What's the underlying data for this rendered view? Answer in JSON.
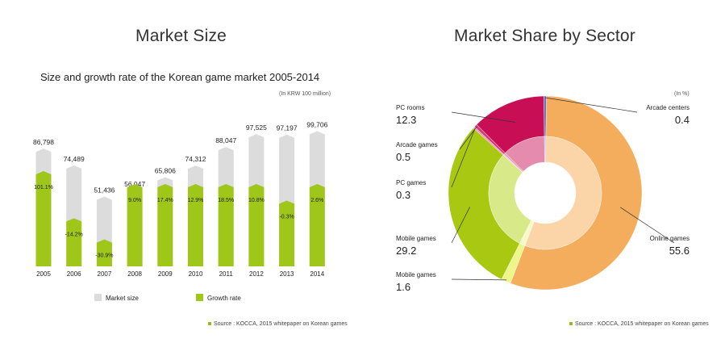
{
  "left": {
    "title": "Market Size",
    "subtitle": "Size and growth rate of the Korean game market 2005-2014",
    "unit": "(In KRW 100 million)",
    "source": "Source : KOCCA, 2015 whitepaper on Korean games"
  },
  "right": {
    "title": "Market Share by Sector",
    "unit": "(In %)",
    "source": "Source : KOCCA, 2015 whitepaper on Korean games"
  },
  "colors": {
    "market_size": "#dcdcdc",
    "growth_rate": "#9ec71a",
    "online": "#f4ad5c",
    "pc_rooms": "#c80f55",
    "mobile": "#a8c812",
    "mobile_small": "#eef58a",
    "arcade": "#6a6fc1"
  },
  "chart_data": [
    {
      "type": "bar",
      "title": "Size and growth rate of the Korean game market 2005-2014",
      "unit": "(In KRW 100 million)",
      "categories": [
        "2005",
        "2006",
        "2007",
        "2008",
        "2009",
        "2010",
        "2011",
        "2012",
        "2013",
        "2014"
      ],
      "series": [
        {
          "name": "Market size",
          "values": [
            86798,
            74489,
            51436,
            56047,
            65806,
            74312,
            88047,
            97525,
            97197,
            99706
          ],
          "labels": [
            "86,798",
            "74,489",
            "51,436",
            "56,047",
            "65,806",
            "74,312",
            "88,047",
            "97,525",
            "97,197",
            "99,706"
          ]
        },
        {
          "name": "Growth rate",
          "values": [
            101.1,
            -14.2,
            -30.9,
            9.0,
            17.4,
            12.9,
            18.5,
            10.8,
            -0.3,
            2.6
          ],
          "labels": [
            "101.1%",
            "-14.2%",
            "-30.9%",
            "9.0%",
            "17.4%",
            "12.9%",
            "18.5%",
            "10.8%",
            "-0.3%",
            "2.6%"
          ]
        }
      ],
      "legend": {
        "position": "bottom",
        "entries": [
          "Market size",
          "Growth rate"
        ]
      }
    },
    {
      "type": "pie",
      "title": "Market Share by Sector",
      "unit": "(In %)",
      "slices": [
        {
          "label": "Online games",
          "value": 55.6,
          "display": "55.6"
        },
        {
          "label": "Mobile games",
          "value": 1.6,
          "display": "1.6"
        },
        {
          "label": "Mobile games",
          "value": 29.2,
          "display": "29.2"
        },
        {
          "label": "PC games",
          "value": 0.3,
          "display": "0.3"
        },
        {
          "label": "Arcade games",
          "value": 0.5,
          "display": "0.5"
        },
        {
          "label": "PC rooms",
          "value": 12.3,
          "display": "12.3"
        },
        {
          "label": "Arcade centers",
          "value": 0.4,
          "display": "0.4"
        }
      ]
    }
  ]
}
